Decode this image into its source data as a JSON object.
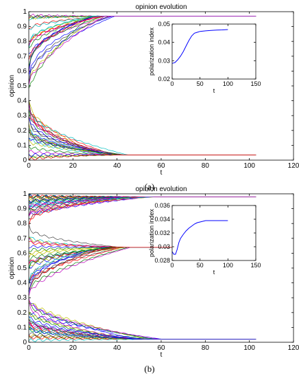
{
  "chart_data": [
    {
      "type": "line",
      "title": "opinion evolution",
      "xlabel": "t",
      "ylabel": "opinion",
      "xlim": [
        0,
        120
      ],
      "ylim": [
        0,
        1
      ],
      "xticks": [
        0,
        20,
        40,
        60,
        80,
        100,
        120
      ],
      "yticks": [
        0,
        0.1,
        0.2,
        0.3,
        0.4,
        0.5,
        0.6,
        0.7,
        0.8,
        0.9,
        1
      ],
      "xtick_labels": [
        "0",
        "20",
        "40",
        "60",
        "80",
        "100",
        "120"
      ],
      "ytick_labels": [
        "0",
        "0.1",
        "0.2",
        "0.3",
        "0.4",
        "0.5",
        "0.6",
        "0.7",
        "0.8",
        "0.9",
        "1"
      ],
      "grid": false,
      "clusters": [
        {
          "final": 0.97,
          "convergence_t": 40,
          "end_t": 103,
          "start_range": [
            0.45,
            1.0
          ]
        },
        {
          "final": 0.035,
          "convergence_t": 45,
          "end_t": 103,
          "start_range": [
            0.0,
            0.45
          ]
        }
      ],
      "inset": {
        "type": "line",
        "xlabel": "t",
        "ylabel": "polarization index",
        "xlim": [
          0,
          150
        ],
        "ylim": [
          0.02,
          0.05
        ],
        "xticks": [
          0,
          50,
          100,
          150
        ],
        "yticks": [
          0.02,
          0.03,
          0.04,
          0.05
        ],
        "xtick_labels": [
          "0",
          "50",
          "100",
          "150"
        ],
        "ytick_labels": [
          "0.02",
          "0.03",
          "0.04",
          "0.05"
        ],
        "x": [
          0,
          5,
          10,
          15,
          20,
          25,
          30,
          35,
          40,
          45,
          50,
          60,
          70,
          80,
          90,
          100
        ],
        "y": [
          0.0285,
          0.029,
          0.0305,
          0.0325,
          0.035,
          0.038,
          0.041,
          0.0435,
          0.045,
          0.0455,
          0.046,
          0.0463,
          0.0465,
          0.0467,
          0.0468,
          0.047
        ]
      }
    },
    {
      "type": "line",
      "title": "opinion evolution",
      "xlabel": "t",
      "ylabel": "opinion",
      "xlim": [
        0,
        120
      ],
      "ylim": [
        0,
        1
      ],
      "xticks": [
        0,
        20,
        40,
        60,
        80,
        100,
        120
      ],
      "yticks": [
        0,
        0.1,
        0.2,
        0.3,
        0.4,
        0.5,
        0.6,
        0.7,
        0.8,
        0.9,
        1
      ],
      "xtick_labels": [
        "0",
        "20",
        "40",
        "60",
        "80",
        "100",
        "120"
      ],
      "ytick_labels": [
        "0",
        "0.1",
        "0.2",
        "0.3",
        "0.4",
        "0.5",
        "0.6",
        "0.7",
        "0.8",
        "0.9",
        "1"
      ],
      "grid": false,
      "clusters": [
        {
          "final": 0.98,
          "convergence_t": 60,
          "end_t": 103,
          "start_range": [
            0.8,
            1.0
          ]
        },
        {
          "final": 0.64,
          "convergence_t": 47,
          "end_t": 103,
          "start_range": [
            0.3,
            0.8
          ]
        },
        {
          "final": 0.02,
          "convergence_t": 62,
          "end_t": 103,
          "start_range": [
            0.0,
            0.3
          ]
        }
      ],
      "inset": {
        "type": "line",
        "xlabel": "t",
        "ylabel": "polarization index",
        "xlim": [
          0,
          150
        ],
        "ylim": [
          0.028,
          0.036
        ],
        "xticks": [
          0,
          50,
          100,
          150
        ],
        "yticks": [
          0.028,
          0.03,
          0.032,
          0.034,
          0.036
        ],
        "xtick_labels": [
          "0",
          "50",
          "100",
          "150"
        ],
        "ytick_labels": [
          "0.028",
          "0.03",
          "0.032",
          "0.034",
          "0.036"
        ],
        "x": [
          0,
          3,
          6,
          9,
          12,
          15,
          20,
          25,
          30,
          35,
          40,
          45,
          50,
          60,
          70,
          80,
          90,
          100
        ],
        "y": [
          0.0293,
          0.0289,
          0.0289,
          0.0296,
          0.0306,
          0.0312,
          0.0318,
          0.0323,
          0.0327,
          0.033,
          0.0333,
          0.0335,
          0.0336,
          0.0338,
          0.0338,
          0.0338,
          0.0338,
          0.0338
        ]
      }
    }
  ],
  "captions": {
    "a": "(a)",
    "b": "(b)"
  }
}
